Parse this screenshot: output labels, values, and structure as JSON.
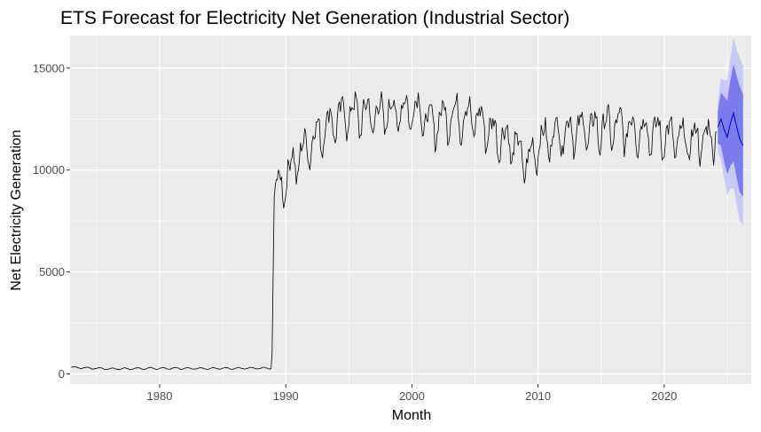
{
  "chart_data": {
    "type": "line",
    "title": "ETS Forecast for Electricity Net Generation (Industrial Sector)",
    "xlabel": "Month",
    "ylabel": "Net Electricity Generation",
    "xlim": [
      1972.9,
      2026.9
    ],
    "ylim": [
      -500,
      16600
    ],
    "x_ticks": [
      1980,
      1990,
      2000,
      2010,
      2020
    ],
    "x_tick_labels": [
      "1980",
      "1990",
      "2000",
      "2010",
      "2020"
    ],
    "y_ticks": [
      0,
      5000,
      10000,
      15000
    ],
    "y_tick_labels": [
      "0",
      "5000",
      "10000",
      "15000"
    ],
    "grid": true,
    "legend": "none",
    "colors": {
      "panel_background": "#ebebeb",
      "grid_major": "#ffffff",
      "observed_line": "#000000",
      "forecast_line": "#0000cc",
      "interval_95": "#c9c9f7",
      "interval_80": "#7b7bee"
    },
    "series": [
      {
        "role": "observed",
        "x_start": 1973.0,
        "step_months": 1,
        "anchors": [
          [
            1973.0,
            320
          ],
          [
            1976.0,
            250
          ],
          [
            1980.0,
            270
          ],
          [
            1985.0,
            270
          ],
          [
            1988.9,
            280
          ],
          [
            1989.0,
            4900
          ],
          [
            1989.1,
            9400
          ],
          [
            1989.5,
            9000
          ],
          [
            1990.5,
            10200
          ],
          [
            1992.0,
            11400
          ],
          [
            1993.5,
            12300
          ],
          [
            1995.0,
            12800
          ],
          [
            1997.0,
            12700
          ],
          [
            1999.0,
            12900
          ],
          [
            2000.5,
            13000
          ],
          [
            2001.5,
            12200
          ],
          [
            2003.0,
            12700
          ],
          [
            2005.0,
            12600
          ],
          [
            2006.5,
            11800
          ],
          [
            2008.0,
            11300
          ],
          [
            2009.2,
            10300
          ],
          [
            2010.0,
            11300
          ],
          [
            2012.0,
            11900
          ],
          [
            2014.0,
            12000
          ],
          [
            2016.0,
            12100
          ],
          [
            2018.0,
            12000
          ],
          [
            2020.0,
            11700
          ],
          [
            2021.0,
            11500
          ],
          [
            2022.0,
            11400
          ],
          [
            2023.5,
            11600
          ],
          [
            2024.2,
            11900
          ]
        ],
        "seasonal_amplitude_before_1989": 40,
        "seasonal_amplitude_after_1989": 800
      },
      {
        "role": "forecast",
        "x": [
          2024.25,
          2024.5,
          2024.75,
          2025.0,
          2025.25,
          2025.5,
          2025.75,
          2026.0,
          2026.25
        ],
        "mean": [
          12100,
          12500,
          12000,
          11600,
          12300,
          12800,
          12100,
          11500,
          11200
        ],
        "lo80": [
          11300,
          11200,
          10400,
          9800,
          10200,
          10400,
          9600,
          8900,
          8700
        ],
        "hi80": [
          12900,
          13800,
          13600,
          13400,
          14400,
          15200,
          14600,
          14100,
          13700
        ],
        "lo95": [
          10900,
          10500,
          9600,
          8800,
          9100,
          9100,
          8300,
          7500,
          7300
        ],
        "hi95": [
          13300,
          14500,
          14400,
          14400,
          15500,
          16500,
          15900,
          15500,
          15100
        ]
      }
    ]
  }
}
